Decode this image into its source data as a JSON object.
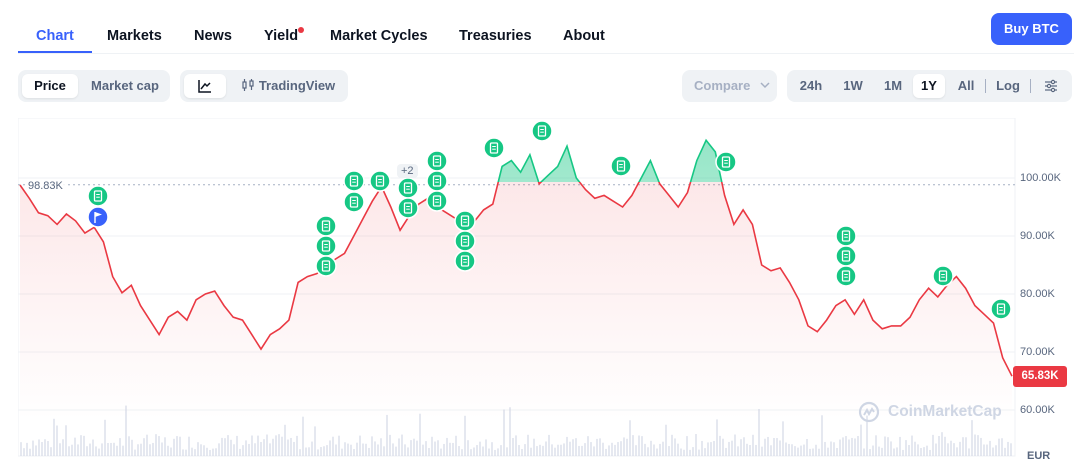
{
  "nav": {
    "tabs": [
      {
        "label": "Chart",
        "active": true
      },
      {
        "label": "Markets"
      },
      {
        "label": "News"
      },
      {
        "label": "Yield",
        "has_dot": true
      },
      {
        "label": "Market Cycles"
      },
      {
        "label": "Treasuries"
      },
      {
        "label": "About"
      }
    ],
    "buy_label": "Buy BTC"
  },
  "toolbar": {
    "price_label": "Price",
    "market_cap_label": "Market cap",
    "line_icon": "line-chart-icon",
    "tradingview_icon": "candlestick-icon",
    "tradingview_label": "TradingView",
    "compare_label": "Compare",
    "ranges": [
      "24h",
      "1W",
      "1M",
      "1Y",
      "All"
    ],
    "selected_range": "1Y",
    "log_label": "Log",
    "settings_icon": "sliders-icon"
  },
  "chart": {
    "reference_label": "98.83K",
    "current_price_label": "65.83K",
    "plus_badge": "+2",
    "watermark": "CoinMarketCap",
    "currency": "EUR",
    "y_ticks": [
      "100.00K",
      "90.00K",
      "80.00K",
      "70.00K",
      "60.00K"
    ],
    "colors": {
      "up": "#16c784",
      "down": "#ea3943",
      "accent": "#3861fb"
    }
  },
  "chart_data": {
    "type": "line",
    "series": [
      {
        "values": [
          98.8,
          96.5,
          94.0,
          93.5,
          92.0,
          93.8,
          92.6,
          90.5,
          91.5,
          89.0,
          83.0,
          80.2,
          81.5,
          78.0,
          75.5,
          73.0,
          76.0,
          77.0,
          75.5,
          79.0,
          80.0,
          80.5,
          78.0,
          76.0,
          75.5,
          73.0,
          70.5,
          73.0,
          74.0,
          75.5,
          82.0,
          83.0,
          83.5,
          84.5,
          86.0,
          87.0,
          90.0,
          93.0,
          96.0,
          98.5,
          95.0,
          91.0,
          93.5,
          95.5,
          96.5,
          95.0,
          94.0,
          93.0,
          91.0,
          92.5,
          94.5,
          95.5,
          102.0,
          103.0,
          101.0,
          104.0,
          99.0,
          100.5,
          102.0,
          105.5,
          100.0,
          98.0,
          96.5,
          97.0,
          96.0,
          95.0,
          97.0,
          100.0,
          103.0,
          99.0,
          97.0,
          95.0,
          97.5,
          103.0,
          106.5,
          104.5,
          97.0,
          92.0,
          94.5,
          92.0,
          85.0,
          84.0,
          84.5,
          82.0,
          79.0,
          74.5,
          73.5,
          75.5,
          78.0,
          79.0,
          76.5,
          79.0,
          75.5,
          74.0,
          74.5,
          74.5,
          76.0,
          79.0,
          81.0,
          79.5,
          81.5,
          83.0,
          81.0,
          78.0,
          76.5,
          75.0,
          69.0,
          65.83
        ],
        "color": "#ea3943"
      }
    ],
    "reference_value": 98.83,
    "ylim": [
      56.5,
      110.5
    ],
    "y_ticks": [
      100,
      90,
      80,
      70,
      60
    ],
    "y_unit": "K",
    "log_scale": false,
    "grid": true,
    "currency": "EUR"
  }
}
